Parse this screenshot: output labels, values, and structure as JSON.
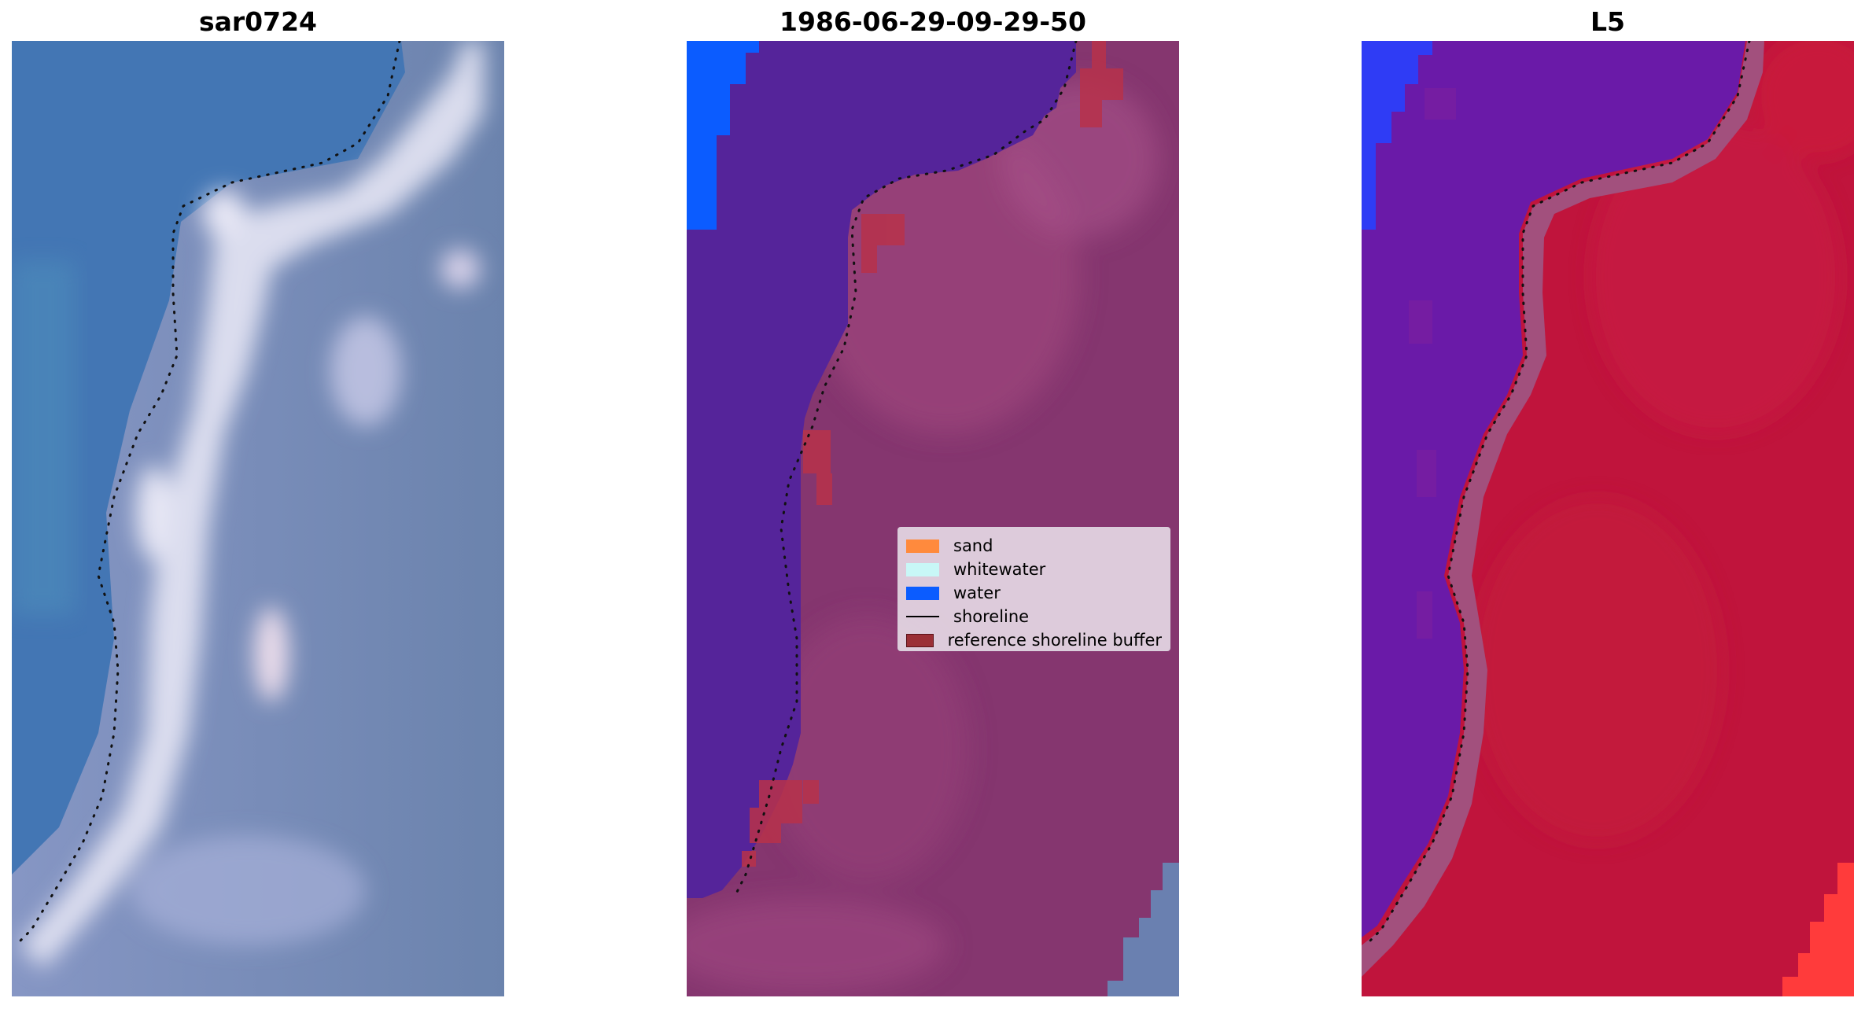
{
  "panels": [
    {
      "title": "sar0724"
    },
    {
      "title": "1986-06-29-09-29-50"
    },
    {
      "title": "L5"
    }
  ],
  "legend": {
    "items": [
      {
        "label": "sand",
        "color": "#ff8a3d",
        "kind": "patch"
      },
      {
        "label": "whitewater",
        "color": "#c8f7f7",
        "kind": "patch"
      },
      {
        "label": "water",
        "color": "#0b5cff",
        "kind": "patch"
      },
      {
        "label": "shoreline",
        "color": "#000000",
        "kind": "line"
      },
      {
        "label": "reference shoreline buffer",
        "color": "#9b2f36",
        "kind": "patch"
      }
    ]
  },
  "colors": {
    "rgb_water": "#4376b4",
    "rgb_land": "#6f85b0",
    "rgb_whitewater": "#e6e6f4",
    "class_water_overlay": "#55249a",
    "class_land_overlay": "#85366f",
    "class_buffer": "#b8324a",
    "class_water_bright": "#0b5cff",
    "mndwi_water": "#6a1aa8",
    "mndwi_land": "#c0143c",
    "mndwi_blue": "#2f3cf5",
    "mndwi_red": "#ff3b3b"
  }
}
